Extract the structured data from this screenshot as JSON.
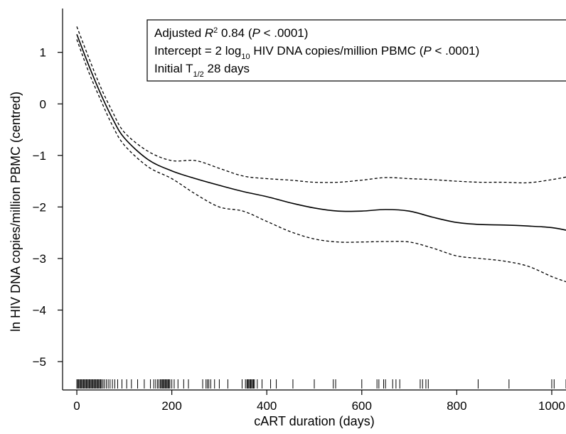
{
  "chart_data": {
    "type": "line",
    "xlabel": "cART duration (days)",
    "ylabel": "ln HIV DNA copies/million PBMC (centred)",
    "xlim": [
      -30,
      1030
    ],
    "ylim": [
      -5.55,
      1.85
    ],
    "x_ticks": [
      0,
      200,
      400,
      600,
      800,
      1000
    ],
    "x_tick_labels": [
      "0",
      "200",
      "400",
      "600",
      "800",
      "1000"
    ],
    "y_ticks": [
      1,
      0,
      -1,
      -2,
      -3,
      -4,
      -5
    ],
    "y_tick_labels": [
      "1",
      "0",
      "−1",
      "−2",
      "−3",
      "−4",
      "−5"
    ],
    "grid": false,
    "legend": "none",
    "annotation": {
      "line1": {
        "label": "Adjusted ",
        "symbol": "R",
        "superscript": "2",
        "value": " 0.84 (",
        "p_symbol": "P",
        "p_value": " < .0001)"
      },
      "line2": {
        "label": "Intercept = 2 log",
        "subscript": "10",
        "rest": " HIV DNA copies/million PBMC (",
        "p_symbol": "P",
        "p_value": " < .0001)"
      },
      "line3": {
        "label": "Initial T",
        "subscript": "1/2",
        "rest": " 28 days"
      }
    },
    "series": [
      {
        "style": "solid",
        "x": [
          0,
          25,
          50,
          75,
          100,
          150,
          200,
          250,
          300,
          350,
          400,
          450,
          500,
          550,
          600,
          650,
          700,
          750,
          800,
          850,
          900,
          950,
          1000,
          1030
        ],
        "y": [
          1.35,
          0.75,
          0.2,
          -0.28,
          -0.66,
          -1.08,
          -1.3,
          -1.45,
          -1.58,
          -1.7,
          -1.8,
          -1.92,
          -2.02,
          -2.08,
          -2.08,
          -2.05,
          -2.08,
          -2.2,
          -2.3,
          -2.34,
          -2.35,
          -2.37,
          -2.4,
          -2.45
        ]
      },
      {
        "style": "dashed",
        "x": [
          0,
          25,
          50,
          75,
          100,
          150,
          200,
          250,
          300,
          350,
          400,
          450,
          500,
          550,
          600,
          650,
          700,
          750,
          800,
          850,
          900,
          950,
          1000,
          1030
        ],
        "y": [
          1.5,
          0.9,
          0.33,
          -0.15,
          -0.55,
          -0.92,
          -1.1,
          -1.1,
          -1.25,
          -1.4,
          -1.45,
          -1.48,
          -1.52,
          -1.52,
          -1.48,
          -1.43,
          -1.45,
          -1.47,
          -1.5,
          -1.52,
          -1.52,
          -1.53,
          -1.47,
          -1.42
        ]
      },
      {
        "style": "dashed",
        "x": [
          0,
          25,
          50,
          75,
          100,
          150,
          200,
          250,
          300,
          350,
          400,
          450,
          500,
          550,
          600,
          650,
          700,
          750,
          800,
          850,
          900,
          950,
          1000,
          1030
        ],
        "y": [
          1.25,
          0.62,
          0.08,
          -0.42,
          -0.8,
          -1.22,
          -1.45,
          -1.75,
          -2.0,
          -2.08,
          -2.28,
          -2.48,
          -2.62,
          -2.68,
          -2.68,
          -2.67,
          -2.68,
          -2.8,
          -2.95,
          -3.0,
          -3.05,
          -3.15,
          -3.35,
          -3.45
        ]
      }
    ],
    "rug_x": [
      0,
      2,
      4,
      6,
      8,
      10,
      12,
      14,
      16,
      18,
      20,
      22,
      24,
      26,
      28,
      30,
      32,
      34,
      36,
      38,
      40,
      42,
      44,
      46,
      48,
      50,
      52,
      55,
      58,
      62,
      66,
      70,
      75,
      80,
      86,
      95,
      105,
      115,
      128,
      142,
      155,
      162,
      166,
      170,
      173,
      176,
      178,
      180,
      182,
      184,
      186,
      188,
      190,
      192,
      194,
      196,
      200,
      205,
      213,
      225,
      235,
      265,
      272,
      275,
      278,
      282,
      290,
      300,
      318,
      348,
      355,
      358,
      360,
      362,
      364,
      366,
      368,
      370,
      372,
      374,
      380,
      390,
      408,
      420,
      455,
      500,
      540,
      545,
      600,
      632,
      636,
      646,
      650,
      665,
      672,
      680,
      723,
      728,
      735,
      740,
      845,
      910,
      1000,
      1005,
      1030
    ]
  }
}
